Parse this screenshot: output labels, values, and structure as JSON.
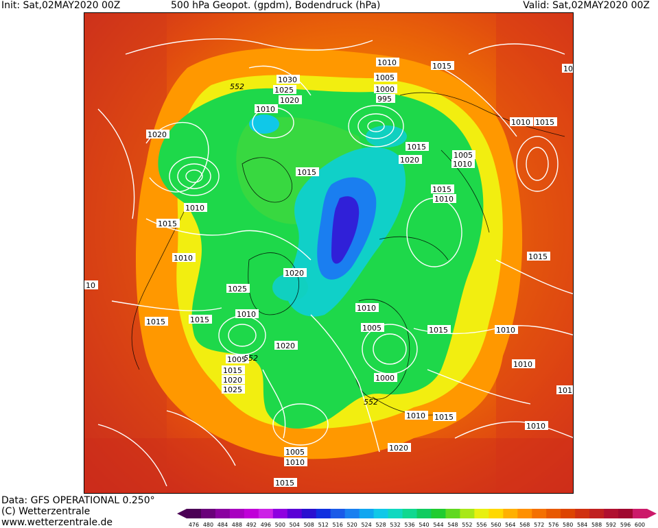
{
  "header": {
    "init": "Init: Sat,02MAY2020 00Z",
    "title": "500 hPa Geopot. (gpdm), Bodendruck (hPa)",
    "valid": "Valid: Sat,02MAY2020 00Z"
  },
  "footer": {
    "data_source": "Data: GFS OPERATIONAL 0.250°",
    "copyright": "(C) Wetterzentrale",
    "url": "www.wetterzentrale.de"
  },
  "colorbar": {
    "ticks": [
      "476",
      "480",
      "484",
      "488",
      "492",
      "496",
      "500",
      "504",
      "508",
      "512",
      "516",
      "520",
      "524",
      "528",
      "532",
      "536",
      "540",
      "544",
      "548",
      "552",
      "556",
      "560",
      "564",
      "568",
      "572",
      "576",
      "580",
      "584",
      "588",
      "592",
      "596",
      "600"
    ],
    "colors": [
      "#4b0055",
      "#6a007a",
      "#8a00a0",
      "#a800c0",
      "#c000d8",
      "#cc22e6",
      "#8f00e0",
      "#5a00d6",
      "#2a10d0",
      "#1030e0",
      "#1a5ae8",
      "#1a80f0",
      "#10a6f0",
      "#10c8e8",
      "#10d8c0",
      "#10d890",
      "#10cc60",
      "#20cc30",
      "#60d820",
      "#a8e818",
      "#e8f010",
      "#ffd800",
      "#ffb000",
      "#ff9000",
      "#f47000",
      "#e85800",
      "#dd4400",
      "#d03010",
      "#c02020",
      "#b01030",
      "#a00830",
      "#cc1a6a"
    ]
  },
  "map": {
    "contours_552_label": "552",
    "isobar_labels": [
      "1010",
      "1015",
      "1030",
      "1025",
      "1020",
      "552",
      "1005",
      "1000",
      "995",
      "1010",
      "1015",
      "1010",
      "1015",
      "1005",
      "1010",
      "1015",
      "1020",
      "1015",
      "1010",
      "1010",
      "1015",
      "1015",
      "1010",
      "1020",
      "1010",
      "1025",
      "1010",
      "1015",
      "1015",
      "1020",
      "1005",
      "1010",
      "1005",
      "1015",
      "1010",
      "1000",
      "1020",
      "552",
      "1025",
      "1015",
      "1010",
      "1015",
      "1010",
      "1015",
      "1005",
      "1010",
      "1020",
      "1010",
      "1010",
      "1015",
      "10",
      "10",
      "101"
    ]
  }
}
